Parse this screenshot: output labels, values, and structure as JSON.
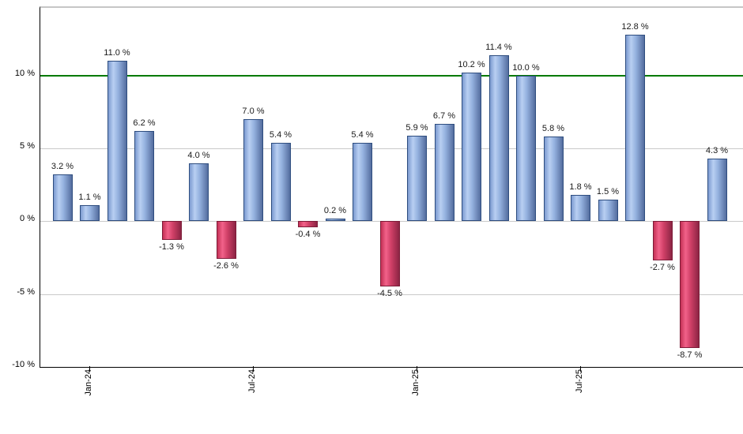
{
  "chart_data": {
    "type": "bar",
    "title": "",
    "xlabel": "",
    "ylabel": "",
    "unit": "%",
    "grid": "horizontal",
    "legend": "none",
    "values": [
      3.2,
      1.1,
      11.0,
      6.2,
      -1.3,
      4.0,
      -2.6,
      7.0,
      5.4,
      -0.4,
      0.2,
      5.4,
      -4.5,
      5.9,
      6.7,
      10.2,
      11.4,
      10.0,
      5.8,
      1.8,
      1.5,
      12.8,
      -2.7,
      -8.7,
      4.3
    ],
    "bar_value_labels": [
      "3.2 %",
      "1.1 %",
      "11.0 %",
      "6.2 %",
      "-1.3 %",
      "4.0 %",
      "-2.6 %",
      "7.0 %",
      "5.4 %",
      "-0.4 %",
      "0.2 %",
      "5.4 %",
      "-4.5 %",
      "5.9 %",
      "6.7 %",
      "10.2 %",
      "11.4 %",
      "10.0 %",
      "5.8 %",
      "1.8 %",
      "1.5 %",
      "12.8 %",
      "-2.7 %",
      "-8.7 %",
      "4.3 %"
    ],
    "x_ticks": [
      {
        "bar_index": 1,
        "label": "Jan-24"
      },
      {
        "bar_index": 7,
        "label": "Jul-24"
      },
      {
        "bar_index": 13,
        "label": "Jan-25"
      },
      {
        "bar_index": 19,
        "label": "Jul-25"
      }
    ],
    "y_ticks": [
      {
        "value": 10,
        "label": "10 %"
      },
      {
        "value": 5,
        "label": "5 %"
      },
      {
        "value": 0,
        "label": "0 %"
      },
      {
        "value": -5,
        "label": "-5 %"
      },
      {
        "value": -10,
        "label": "-10 %"
      }
    ],
    "ylim": [
      -10,
      14.65
    ],
    "reference_line": {
      "value": 10,
      "color": "#007a00"
    },
    "colors": {
      "positive_bar_border": "#2e4d7f",
      "positive_bar_gradient": [
        "#7b9ad0",
        "#b9cff2",
        "#93b0de",
        "#546d9e"
      ],
      "negative_bar_border": "#7d1c38",
      "negative_bar_gradient": [
        "#c43156",
        "#f2628a",
        "#d04067",
        "#8c2444"
      ],
      "gridline": "#c9c9c9",
      "axis": "#000000",
      "background": "#ffffff",
      "label_text": "#1a1a1a"
    }
  }
}
